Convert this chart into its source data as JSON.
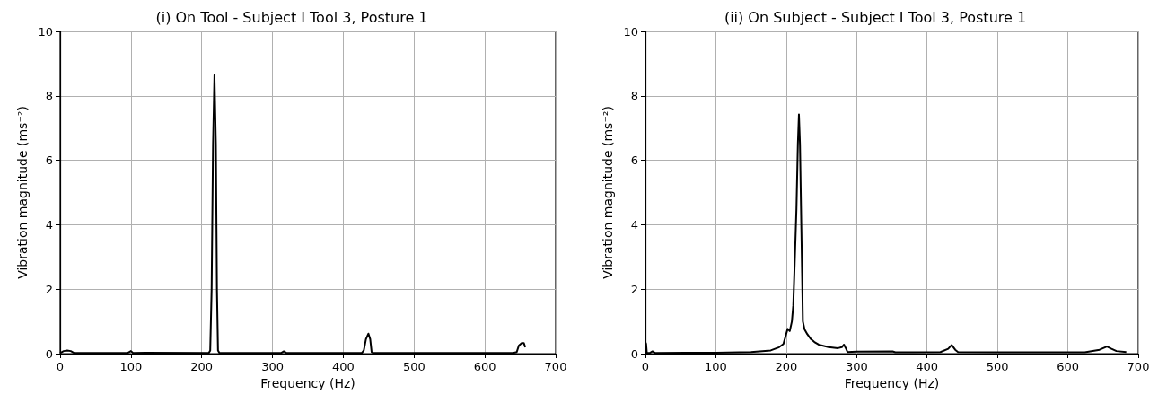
{
  "chart_data": [
    {
      "type": "line",
      "title": "(i) On Tool - Subject I Tool 3, Posture 1",
      "xlabel": "Frequency (Hz)",
      "ylabel": "Vibration magnitude (ms⁻²)",
      "series": [
        {
          "color": "#000000",
          "x": [
            0,
            5,
            10,
            15,
            20,
            95,
            100,
            103,
            120,
            210,
            212,
            214,
            216,
            218,
            220,
            221.5,
            223,
            225,
            312,
            316,
            320,
            426,
            429,
            432,
            435.5,
            438,
            440,
            442,
            640,
            645,
            648,
            652,
            655,
            657
          ],
          "values": [
            0.02,
            0.08,
            0.1,
            0.08,
            0.02,
            0.02,
            0.08,
            0.02,
            0.03,
            0.02,
            0.1,
            2,
            6.5,
            8.64,
            6.5,
            2,
            0.1,
            0.02,
            0.02,
            0.07,
            0.02,
            0.02,
            0.1,
            0.45,
            0.62,
            0.45,
            0.05,
            0.02,
            0.02,
            0.05,
            0.25,
            0.33,
            0.33,
            0.2
          ]
        }
      ],
      "xlim": [
        0,
        700
      ],
      "xticks": [
        0,
        100,
        200,
        300,
        400,
        500,
        600,
        700
      ],
      "ylim": [
        0,
        10
      ],
      "yticks": [
        0,
        2,
        4,
        6,
        8,
        10
      ],
      "grid": true,
      "marker": "none",
      "line_style": "solid"
    },
    {
      "type": "line",
      "title": "(ii) On Subject - Subject I Tool 3, Posture 1",
      "xlabel": "Frequency (Hz)",
      "ylabel": "Vibration magnitude (ms⁻²)",
      "series": [
        {
          "color": "#000000",
          "x": [
            0,
            1,
            2,
            6,
            10,
            14,
            100,
            150,
            178,
            190,
            196,
            202,
            205,
            208,
            210,
            212,
            214.5,
            216.5,
            218,
            219.5,
            221,
            222.5,
            223.6,
            226,
            230,
            235,
            240,
            246,
            260,
            273.6,
            279,
            282,
            285,
            287,
            300,
            351,
            355,
            419,
            430,
            435,
            440,
            444,
            500,
            624,
            645,
            655.5,
            662,
            669,
            683
          ],
          "values": [
            0.35,
            0.3,
            0.02,
            0.02,
            0.07,
            0.02,
            0.03,
            0.05,
            0.1,
            0.2,
            0.3,
            0.77,
            0.7,
            1.0,
            1.5,
            2.8,
            4.5,
            6.5,
            7.42,
            6.5,
            4.5,
            2.5,
            1.0,
            0.75,
            0.6,
            0.45,
            0.36,
            0.28,
            0.2,
            0.17,
            0.2,
            0.28,
            0.15,
            0.05,
            0.06,
            0.07,
            0.04,
            0.05,
            0.15,
            0.27,
            0.12,
            0.05,
            0.04,
            0.04,
            0.12,
            0.22,
            0.15,
            0.08,
            0.05
          ]
        }
      ],
      "xlim": [
        0,
        700
      ],
      "xticks": [
        0,
        100,
        200,
        300,
        400,
        500,
        600,
        700
      ],
      "ylim": [
        0,
        10
      ],
      "yticks": [
        0,
        2,
        4,
        6,
        8,
        10
      ],
      "grid": true,
      "marker": "none",
      "line_style": "solid"
    }
  ]
}
